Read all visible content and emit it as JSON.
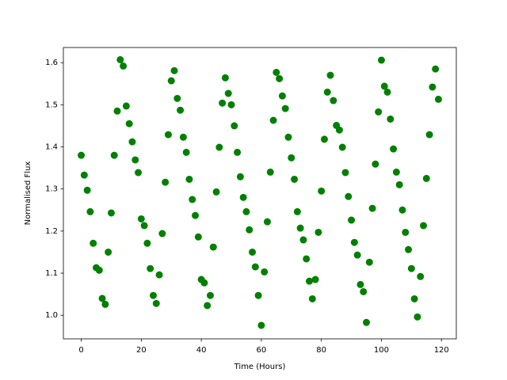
{
  "chart_data": {
    "type": "scatter",
    "xlabel": "Time (Hours)",
    "ylabel": "Normalised Flux",
    "color": "#008000",
    "x": [
      0,
      1,
      2,
      3,
      4,
      5,
      6,
      7,
      8,
      9,
      10,
      11,
      12,
      13,
      14,
      15,
      16,
      17,
      18,
      19,
      20,
      21,
      22,
      23,
      24,
      25,
      26,
      27,
      28,
      29,
      30,
      31,
      32,
      33,
      34,
      35,
      36,
      37,
      38,
      39,
      40,
      41,
      42,
      43,
      44,
      45,
      46,
      47,
      48,
      49,
      50,
      51,
      52,
      53,
      54,
      55,
      56,
      57,
      58,
      59,
      60,
      61,
      62,
      63,
      64,
      65,
      66,
      67,
      68,
      69,
      70,
      71,
      72,
      73,
      74,
      75,
      76,
      77,
      78,
      79,
      80,
      81,
      82,
      83,
      84,
      85,
      86,
      87,
      88,
      89,
      90,
      91,
      92,
      93,
      94,
      95,
      96,
      97,
      98,
      99,
      100,
      101,
      102,
      103,
      104,
      105,
      106,
      107,
      108,
      109,
      110,
      111,
      112,
      113,
      114,
      115,
      116,
      117,
      118,
      119
    ],
    "values": [
      1.38,
      1.333,
      1.297,
      1.246,
      1.171,
      1.113,
      1.107,
      1.04,
      1.026,
      1.15,
      1.243,
      1.38,
      1.485,
      1.607,
      1.592,
      1.497,
      1.455,
      1.412,
      1.369,
      1.339,
      1.229,
      1.213,
      1.171,
      1.111,
      1.047,
      1.028,
      1.096,
      1.194,
      1.316,
      1.429,
      1.557,
      1.581,
      1.515,
      1.487,
      1.423,
      1.387,
      1.323,
      1.275,
      1.237,
      1.186,
      1.085,
      1.077,
      1.023,
      1.047,
      1.162,
      1.293,
      1.399,
      1.504,
      1.564,
      1.527,
      1.5,
      1.45,
      1.387,
      1.329,
      1.28,
      1.246,
      1.203,
      1.15,
      1.115,
      1.047,
      0.976,
      1.103,
      1.222,
      1.34,
      1.463,
      1.577,
      1.562,
      1.521,
      1.491,
      1.423,
      1.374,
      1.323,
      1.246,
      1.207,
      1.179,
      1.134,
      1.081,
      1.039,
      1.085,
      1.197,
      1.295,
      1.418,
      1.53,
      1.57,
      1.51,
      1.451,
      1.44,
      1.399,
      1.339,
      1.282,
      1.226,
      1.173,
      1.143,
      1.073,
      1.056,
      0.983,
      1.126,
      1.254,
      1.359,
      1.483,
      1.606,
      1.544,
      1.53,
      1.466,
      1.395,
      1.34,
      1.31,
      1.25,
      1.197,
      1.156,
      1.111,
      1.039,
      0.996,
      1.092,
      1.213,
      1.325,
      1.429,
      1.542,
      1.585,
      1.513
    ],
    "xlim": [
      -5.95,
      124.95
    ],
    "ylim": [
      0.944,
      1.636
    ],
    "xticks": [
      0,
      20,
      40,
      60,
      80,
      100,
      120
    ],
    "yticks": [
      {
        "value": 1,
        "label": "1.0"
      },
      1.1,
      1.2,
      1.3,
      1.4,
      1.5,
      1.6
    ]
  }
}
